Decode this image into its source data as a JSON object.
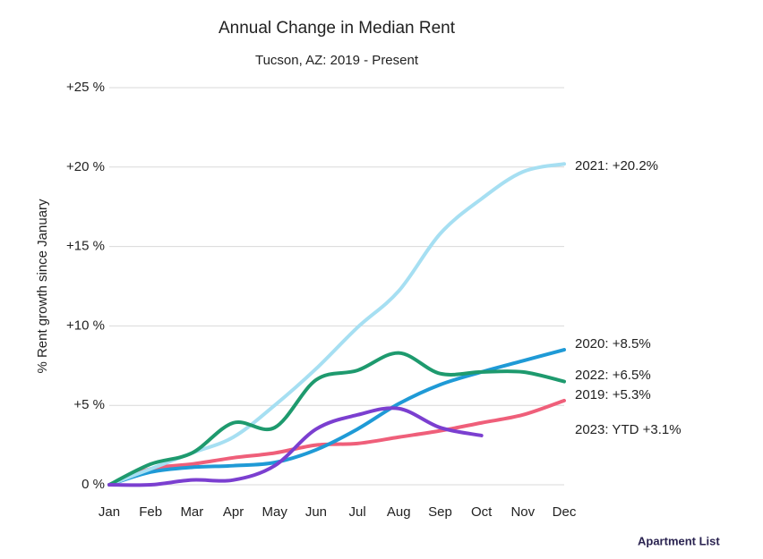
{
  "chart_data": {
    "type": "line",
    "title": "Annual Change in Median Rent",
    "subtitle": "Tucson, AZ: 2019 - Present",
    "y_label": "% Rent growth since January",
    "logo": "Apartment List",
    "categories": [
      "Jan",
      "Feb",
      "Mar",
      "Apr",
      "May",
      "Jun",
      "Jul",
      "Aug",
      "Sep",
      "Oct",
      "Nov",
      "Dec"
    ],
    "ylim": [
      0,
      25
    ],
    "yticks": [
      {
        "value": 0,
        "label": "0 %"
      },
      {
        "value": 5,
        "label": "+5 %"
      },
      {
        "value": 10,
        "label": "+10 %"
      },
      {
        "value": 15,
        "label": "+15 %"
      },
      {
        "value": 20,
        "label": "+20 %"
      },
      {
        "value": 25,
        "label": "+25 %"
      }
    ],
    "grid": true,
    "series": [
      {
        "name": "2021: +20.2%",
        "color": "#a6dff2",
        "values": [
          0,
          1.0,
          2.0,
          3.0,
          5.0,
          7.3,
          9.9,
          12.2,
          15.8,
          18.0,
          19.7,
          20.2
        ]
      },
      {
        "name": "2020: +8.5%",
        "color": "#1f9ad6",
        "values": [
          0,
          0.8,
          1.1,
          1.2,
          1.4,
          2.2,
          3.5,
          5.1,
          6.3,
          7.1,
          7.8,
          8.5
        ]
      },
      {
        "name": "2022: +6.5%",
        "color": "#1e9a6e",
        "values": [
          0,
          1.3,
          2.0,
          3.9,
          3.6,
          6.6,
          7.2,
          8.3,
          7.0,
          7.1,
          7.1,
          6.5
        ]
      },
      {
        "name": "2019: +5.3%",
        "color": "#ef5f7a",
        "values": [
          0,
          1.0,
          1.3,
          1.7,
          2.0,
          2.5,
          2.6,
          3.0,
          3.4,
          3.9,
          4.4,
          5.3
        ]
      },
      {
        "name": "2023: YTD +3.1%",
        "color": "#7b3fd0",
        "values": [
          0,
          0.0,
          0.3,
          0.3,
          1.2,
          3.5,
          4.4,
          4.8,
          3.6,
          3.1,
          null,
          null
        ]
      }
    ]
  }
}
